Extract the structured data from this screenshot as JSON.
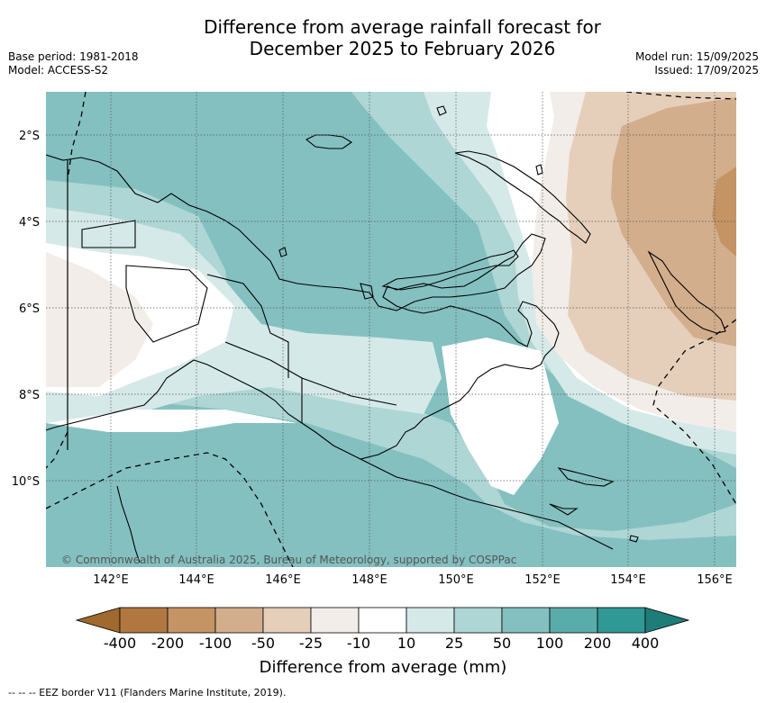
{
  "header": {
    "title_line1": "Difference from average rainfall forecast for",
    "title_line2": "December 2025 to February 2026",
    "base_period": "Base period: 1981-2018",
    "model": "Model: ACCESS-S2",
    "model_run": "Model run: 15/09/2025",
    "issued": "Issued: 17/09/2025"
  },
  "map": {
    "lat_labels": [
      "2°S",
      "4°S",
      "6°S",
      "8°S",
      "10°S"
    ],
    "lon_labels": [
      "142°E",
      "144°E",
      "146°E",
      "148°E",
      "150°E",
      "152°E",
      "154°E",
      "156°E"
    ],
    "copyright": "© Commonwealth of Australia 2025, Bureau of Meteorology, supported by COSPPac"
  },
  "colorbar": {
    "labels": [
      "-400",
      "-200",
      "-100",
      "-50",
      "-25",
      "-10",
      "10",
      "25",
      "50",
      "100",
      "200",
      "400"
    ],
    "colors": [
      "#a0692e",
      "#b07840",
      "#c49464",
      "#d2ae8c",
      "#e5cfbb",
      "#f2ede8",
      "#ffffff",
      "#d5e9e8",
      "#aed6d5",
      "#84c0c0",
      "#5aacab",
      "#309895",
      "#1e7d79"
    ],
    "title": "Difference from average (mm)"
  },
  "footer": {
    "eez_note": "--  --  -- EEZ border V11 (Flanders Marine Institute, 2019)."
  }
}
